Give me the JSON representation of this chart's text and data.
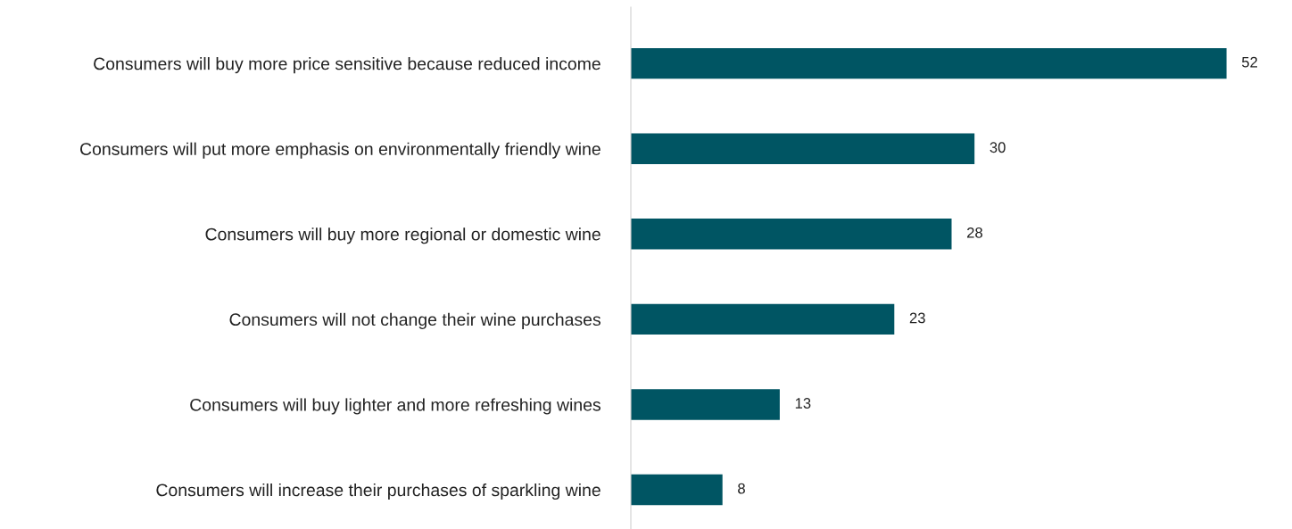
{
  "chart_data": {
    "type": "bar",
    "orientation": "horizontal",
    "categories": [
      "Consumers will buy more price sensitive because reduced income",
      "Consumers will put more emphasis on environmentally friendly wine",
      "Consumers will buy more regional or domestic wine",
      "Consumers will not change their wine purchases",
      "Consumers will buy lighter and more refreshing wines",
      "Consumers will increase their purchases of sparkling wine"
    ],
    "values": [
      52,
      30,
      28,
      23,
      13,
      8
    ],
    "color": "#005563",
    "data_labels": true,
    "grid": false,
    "legend": false
  }
}
